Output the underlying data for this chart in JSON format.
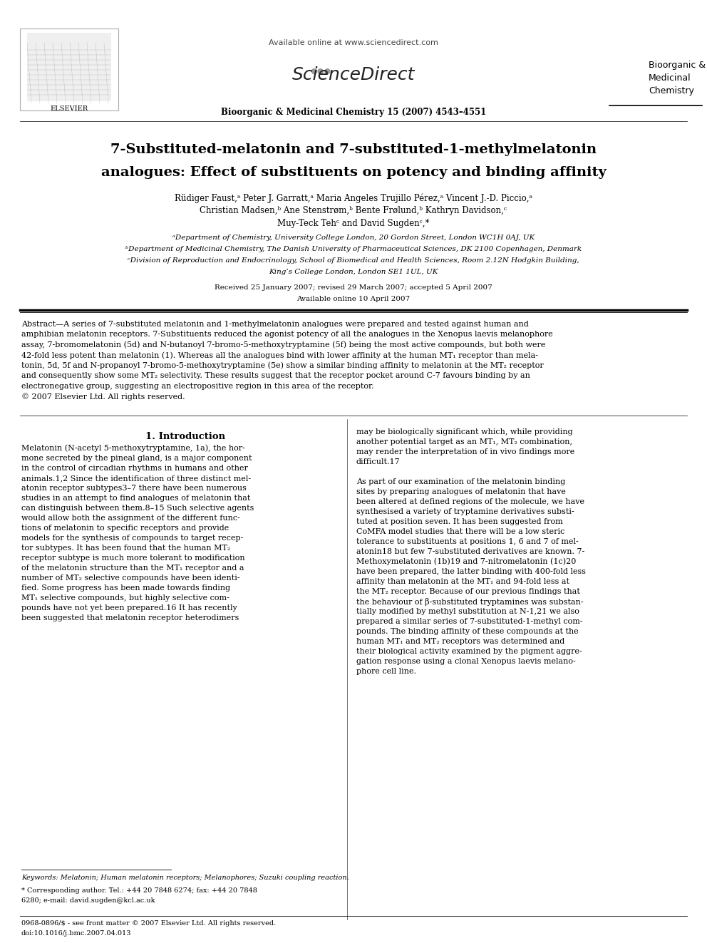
{
  "title_line1": "7-Substituted-melatonin and 7-substituted-1-methylmelatonin",
  "title_line2": "analogues: Effect of substituents on potency and binding affinity",
  "authors_line1": "Rüdiger Faust,ᵃ Peter J. Garratt,ᵃ Maria Angeles Trujillo Pérez,ᵃ Vincent J.-D. Piccio,ᵃ",
  "authors_line2": "Christian Madsen,ᵇ Ane Stenstrøm,ᵇ Bente Frølund,ᵇ Kathryn Davidson,ᶜ",
  "authors_line3": "Muy-Teck Tehᶜ and David Sugdenᶜ,*",
  "affil_a": "ᵃDepartment of Chemistry, University College London, 20 Gordon Street, London WC1H 0AJ, UK",
  "affil_b": "ᵇDepartment of Medicinal Chemistry, The Danish University of Pharmaceutical Sciences, DK 2100 Copenhagen, Denmark",
  "affil_c": "ᶜDivision of Reproduction and Endocrinology, School of Biomedical and Health Sciences, Room 2.12N Hodgkin Building,",
  "affil_c2": "King’s College London, London SE1 1UL, UK",
  "dates": "Received 25 January 2007; revised 29 March 2007; accepted 5 April 2007",
  "available": "Available online 10 April 2007",
  "journal_header": "Bioorganic & Medicinal Chemistry 15 (2007) 4543–4551",
  "available_online": "Available online at www.sciencedirect.com",
  "journal_name_right": "Bioorganic &\nMedicinal\nChemistry",
  "elsevier_label": "ELSEVIER",
  "section1_title": "1. Introduction",
  "abstract_line1": "Abstract—A series of 7-substituted melatonin and 1-methylmelatonin analogues were prepared and tested against human and",
  "abstract_line2": "amphibian melatonin receptors. 7-Substituents reduced the agonist potency of all the analogues in the Xenopus laevis melanophore",
  "abstract_line3": "assay, 7-bromomelatonin (5d) and N-butanoyl 7-bromo-5-methoxytryptamine (5f) being the most active compounds, but both were",
  "abstract_line4": "42-fold less potent than melatonin (1). Whereas all the analogues bind with lower affinity at the human MT₁ receptor than mela-",
  "abstract_line5": "tonin, 5d, 5f and N-propanoyl 7-bromo-5-methoxytryptamine (5e) show a similar binding affinity to melatonin at the MT₂ receptor",
  "abstract_line6": "and consequently show some MT₂ selectivity. These results suggest that the receptor pocket around C-7 favours binding by an",
  "abstract_line7": "electronegative group, suggesting an electropositive region in this area of the receptor.",
  "abstract_line8": "© 2007 Elsevier Ltd. All rights reserved.",
  "keywords": "Keywords: Melatonin; Human melatonin receptors; Melanophores; Suzuki coupling reaction.",
  "corresponding": "* Corresponding author. Tel.: +44 20 7848 6274; fax: +44 20 7848",
  "corresponding2": "6280; e-mail: david.sugden@kcl.ac.uk",
  "issn": "0968-0896/$ - see front matter © 2007 Elsevier Ltd. All rights reserved.",
  "doi": "doi:10.1016/j.bmc.2007.04.013",
  "bg_color": "#ffffff",
  "text_color": "#000000",
  "intro_left_lines": [
    "Melatonin (N-acetyl 5-methoxytryptamine, 1a), the hor-",
    "mone secreted by the pineal gland, is a major component",
    "in the control of circadian rhythms in humans and other",
    "animals.1,2 Since the identification of three distinct mel-",
    "atonin receptor subtypes3–7 there have been numerous",
    "studies in an attempt to find analogues of melatonin that",
    "can distinguish between them.8–15 Such selective agents",
    "would allow both the assignment of the different func-",
    "tions of melatonin to specific receptors and provide",
    "models for the synthesis of compounds to target recep-",
    "tor subtypes. It has been found that the human MT₂",
    "receptor subtype is much more tolerant to modification",
    "of the melatonin structure than the MT₁ receptor and a",
    "number of MT₂ selective compounds have been identi-",
    "fied. Some progress has been made towards finding",
    "MT₁ selective compounds, but highly selective com-",
    "pounds have not yet been prepared.16 It has recently",
    "been suggested that melatonin receptor heterodimers"
  ],
  "intro_right_lines": [
    "may be biologically significant which, while providing",
    "another potential target as an MT₁, MT₂ combination,",
    "may render the interpretation of in vivo findings more",
    "difficult.17",
    "",
    "As part of our examination of the melatonin binding",
    "sites by preparing analogues of melatonin that have",
    "been altered at defined regions of the molecule, we have",
    "synthesised a variety of tryptamine derivatives substi-",
    "tuted at position seven. It has been suggested from",
    "CoMFA model studies that there will be a low steric",
    "tolerance to substituents at positions 1, 6 and 7 of mel-",
    "atonin18 but few 7-substituted derivatives are known. 7-",
    "Methoxymelatonin (1b)19 and 7-nitromelatonin (1c)20",
    "have been prepared, the latter binding with 400-fold less",
    "affinity than melatonin at the MT₁ and 94-fold less at",
    "the MT₂ receptor. Because of our previous findings that",
    "the behaviour of β-substituted tryptamines was substan-",
    "tially modified by methyl substitution at N-1,21 we also",
    "prepared a similar series of 7-substituted-1-methyl com-",
    "pounds. The binding affinity of these compounds at the",
    "human MT₁ and MT₂ receptors was determined and",
    "their biological activity examined by the pigment aggre-",
    "gation response using a clonal Xenopus laevis melano-",
    "phore cell line."
  ]
}
